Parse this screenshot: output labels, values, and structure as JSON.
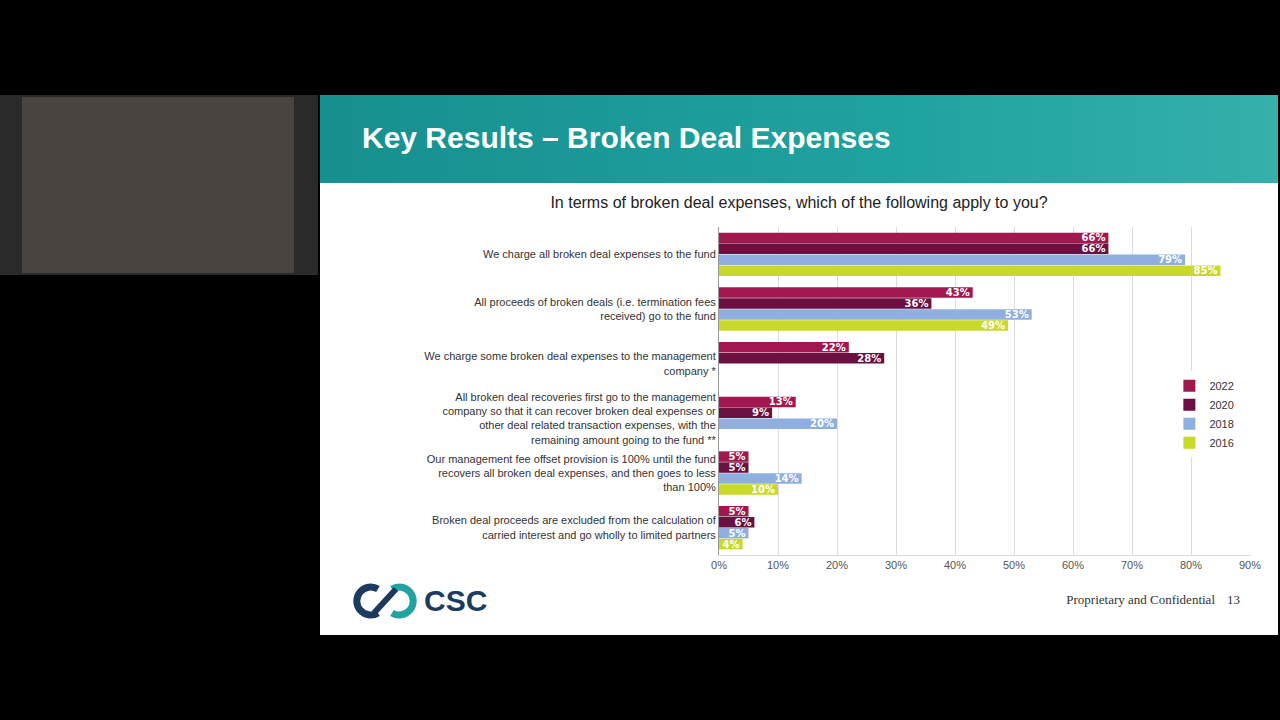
{
  "header": "Key Results – Broken Deal Expenses",
  "chart_data": {
    "type": "bar",
    "orientation": "horizontal",
    "title": "In terms of broken deal expenses, which of the following apply to you?",
    "categories": [
      "We charge all broken deal expenses to the fund",
      "All proceeds of broken deals (i.e. termination fees received) go to the fund",
      "We charge some broken deal expenses to the management company *",
      "All broken deal recoveries first go to the management company so that it can recover broken deal expenses or other deal related transaction expenses, with the remaining amount going to the fund **",
      "Our management fee offset provision is 100% until the fund recovers all broken deal expenses, and then goes to less than 100%",
      "Broken deal proceeds are excluded from the calculation of carried interest and go wholly to limited partners"
    ],
    "series": [
      {
        "name": "2022",
        "color": "#a3174f",
        "values": [
          66,
          43,
          22,
          13,
          5,
          5
        ],
        "value_labels": [
          "66%",
          "43%",
          "22%",
          "13%",
          "5%",
          "5%"
        ]
      },
      {
        "name": "2020",
        "color": "#6b1142",
        "values": [
          66,
          36,
          28,
          9,
          5,
          6
        ],
        "value_labels": [
          "66%",
          "36%",
          "28%",
          "9%",
          "5%",
          "6%"
        ]
      },
      {
        "name": "2018",
        "color": "#8eafe0",
        "values": [
          79,
          53,
          null,
          20,
          14,
          5
        ],
        "value_labels": [
          "79%",
          "53%",
          null,
          "20%",
          "14%",
          "5%"
        ]
      },
      {
        "name": "2016",
        "color": "#c9d92b",
        "values": [
          85,
          49,
          null,
          null,
          10,
          4
        ],
        "value_labels": [
          "85%",
          "49%",
          null,
          null,
          "10%",
          "4%"
        ]
      }
    ],
    "xlim": [
      0,
      90
    ],
    "xticks": [
      {
        "value": 0,
        "label": "0%"
      },
      {
        "value": 10,
        "label": "10%"
      },
      {
        "value": 20,
        "label": "20%"
      },
      {
        "value": 30,
        "label": "30%"
      },
      {
        "value": 40,
        "label": "40%"
      },
      {
        "value": 50,
        "label": "50%"
      },
      {
        "value": 60,
        "label": "60%"
      },
      {
        "value": 70,
        "label": "70%"
      },
      {
        "value": 80,
        "label": "80%"
      },
      {
        "value": 90,
        "label": "90%"
      }
    ],
    "grid": true,
    "legend": "right",
    "data_labels": true
  },
  "footer": {
    "logo": "CSC",
    "text": "Proprietary and Confidential",
    "page": 13
  }
}
